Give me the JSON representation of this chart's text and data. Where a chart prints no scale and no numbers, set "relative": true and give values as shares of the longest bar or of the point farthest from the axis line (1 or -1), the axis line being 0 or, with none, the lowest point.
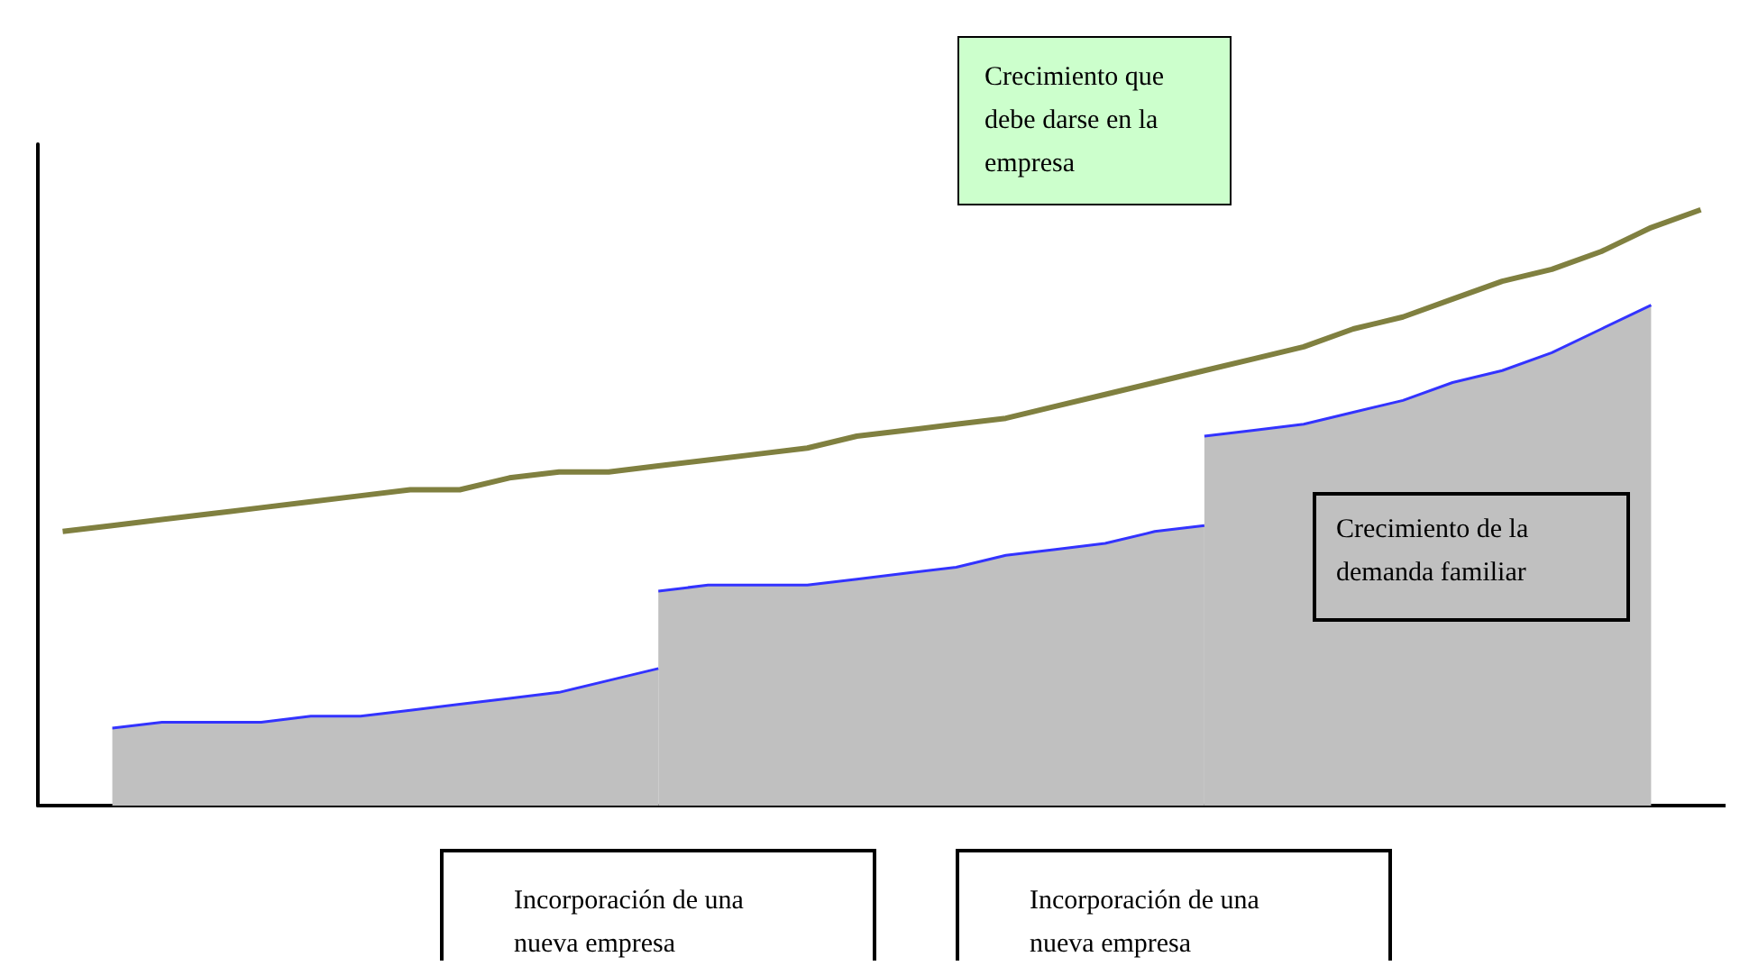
{
  "chart_data": {
    "type": "line",
    "relative": true,
    "grid": false,
    "marker": "none",
    "categories": [
      null,
      null,
      null,
      null,
      null,
      null,
      null,
      null,
      null,
      null,
      null,
      null,
      null,
      null,
      null,
      null,
      null,
      null,
      null,
      null,
      null,
      null,
      null,
      null,
      null,
      null,
      null,
      null,
      null,
      null,
      null,
      null,
      null,
      null
    ],
    "series": [
      {
        "type": "line",
        "color": "#808040",
        "values": [
          0.46,
          0.47,
          0.48,
          0.49,
          0.5,
          0.51,
          0.52,
          0.53,
          0.53,
          0.55,
          0.56,
          0.56,
          0.57,
          0.58,
          0.59,
          0.6,
          0.62,
          0.63,
          0.64,
          0.65,
          0.67,
          0.69,
          0.71,
          0.73,
          0.75,
          0.77,
          0.8,
          0.82,
          0.85,
          0.88,
          0.9,
          0.93,
          0.97,
          1
        ]
      },
      {
        "type": "area",
        "color": "#c0c0c0",
        "values": [
          null,
          0.13,
          0.14,
          0.14,
          0.14,
          0.15,
          0.15,
          0.16,
          0.17,
          0.18,
          0.19,
          0.21,
          0.23,
          null,
          null,
          null,
          null,
          null,
          null,
          null,
          null,
          null,
          null,
          null,
          null,
          null,
          null,
          null,
          null,
          null,
          null,
          null,
          null,
          null
        ]
      },
      {
        "type": "area",
        "color": "#c0c0c0",
        "values": [
          null,
          null,
          null,
          null,
          null,
          null,
          null,
          null,
          null,
          null,
          null,
          null,
          0.36,
          0.37,
          0.37,
          0.37,
          0.38,
          0.39,
          0.4,
          0.42,
          0.43,
          0.44,
          0.46,
          0.47,
          null,
          null,
          null,
          null,
          null,
          null,
          null,
          null,
          null,
          null
        ]
      },
      {
        "type": "area",
        "color": "#c0c0c0",
        "values": [
          null,
          null,
          null,
          null,
          null,
          null,
          null,
          null,
          null,
          null,
          null,
          null,
          null,
          null,
          null,
          null,
          null,
          null,
          null,
          null,
          null,
          null,
          null,
          0.62,
          0.63,
          0.64,
          0.66,
          0.68,
          0.71,
          0.73,
          0.76,
          0.8,
          0.84,
          null
        ]
      }
    ],
    "annotations": [
      "Crecimiento que debe darse en la empresa",
      "Crecimiento de la demanda familiar",
      "Incorporación de una nueva empresa",
      "Incorporación de una nueva empresa"
    ]
  }
}
